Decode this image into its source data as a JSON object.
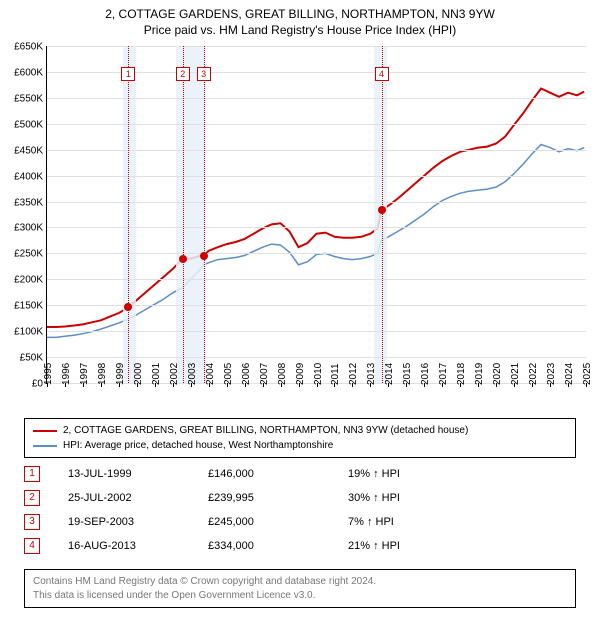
{
  "title": {
    "line1": "2, COTTAGE GARDENS, GREAT BILLING, NORTHAMPTON, NN3 9YW",
    "line2": "Price paid vs. HM Land Registry's House Price Index (HPI)"
  },
  "chart": {
    "type": "line",
    "background_color": "#ffffff",
    "grid_color": "#e0e0e0",
    "shade_color": "#e9f0f8",
    "x": {
      "min": 1995,
      "max": 2025,
      "step": 1
    },
    "y": {
      "min": 0,
      "max": 650000,
      "step": 50000,
      "prefix": "£",
      "suffix": "K",
      "divisor": 1000
    },
    "vline_color": "#cc0000",
    "marker_box_border": "#cc0000",
    "marker_box_text": "#cc0000",
    "marker_top_y": 610000,
    "shaded_ranges": [
      {
        "from": 1999.25,
        "to": 1999.95
      },
      {
        "from": 2002.2,
        "to": 2003.85
      },
      {
        "from": 2013.2,
        "to": 2013.95
      }
    ],
    "sales_markers": [
      {
        "n": "1",
        "x": 1999.53,
        "y": 146000
      },
      {
        "n": "2",
        "x": 2002.56,
        "y": 239995
      },
      {
        "n": "3",
        "x": 2003.72,
        "y": 245000
      },
      {
        "n": "4",
        "x": 2013.62,
        "y": 334000
      }
    ],
    "series": [
      {
        "name": "property",
        "color": "#cc0000",
        "width": 2,
        "points": [
          [
            1995.0,
            108000
          ],
          [
            1995.5,
            108000
          ],
          [
            1996.0,
            109000
          ],
          [
            1996.5,
            111000
          ],
          [
            1997.0,
            113000
          ],
          [
            1997.5,
            117000
          ],
          [
            1998.0,
            121000
          ],
          [
            1998.5,
            128000
          ],
          [
            1999.0,
            135000
          ],
          [
            1999.53,
            146000
          ],
          [
            2000.0,
            160000
          ],
          [
            2000.5,
            175000
          ],
          [
            2001.0,
            190000
          ],
          [
            2001.5,
            205000
          ],
          [
            2002.0,
            220000
          ],
          [
            2002.56,
            239995
          ],
          [
            2003.0,
            240000
          ],
          [
            2003.5,
            245000
          ],
          [
            2003.72,
            245000
          ],
          [
            2004.0,
            255000
          ],
          [
            2004.5,
            262000
          ],
          [
            2005.0,
            268000
          ],
          [
            2005.5,
            272000
          ],
          [
            2006.0,
            278000
          ],
          [
            2006.5,
            288000
          ],
          [
            2007.0,
            298000
          ],
          [
            2007.5,
            306000
          ],
          [
            2008.0,
            308000
          ],
          [
            2008.5,
            292000
          ],
          [
            2009.0,
            262000
          ],
          [
            2009.5,
            270000
          ],
          [
            2010.0,
            288000
          ],
          [
            2010.5,
            290000
          ],
          [
            2011.0,
            282000
          ],
          [
            2011.5,
            280000
          ],
          [
            2012.0,
            280000
          ],
          [
            2012.5,
            282000
          ],
          [
            2013.0,
            288000
          ],
          [
            2013.4,
            298000
          ],
          [
            2013.62,
            334000
          ],
          [
            2014.0,
            342000
          ],
          [
            2014.5,
            355000
          ],
          [
            2015.0,
            370000
          ],
          [
            2015.5,
            385000
          ],
          [
            2016.0,
            400000
          ],
          [
            2016.5,
            415000
          ],
          [
            2017.0,
            428000
          ],
          [
            2017.5,
            438000
          ],
          [
            2018.0,
            446000
          ],
          [
            2018.5,
            450000
          ],
          [
            2019.0,
            454000
          ],
          [
            2019.5,
            456000
          ],
          [
            2020.0,
            462000
          ],
          [
            2020.5,
            475000
          ],
          [
            2021.0,
            498000
          ],
          [
            2021.5,
            520000
          ],
          [
            2022.0,
            545000
          ],
          [
            2022.5,
            568000
          ],
          [
            2023.0,
            560000
          ],
          [
            2023.5,
            552000
          ],
          [
            2024.0,
            560000
          ],
          [
            2024.5,
            555000
          ],
          [
            2024.9,
            562000
          ]
        ]
      },
      {
        "name": "hpi",
        "color": "#5b8fc7",
        "width": 1.5,
        "points": [
          [
            1995.0,
            88000
          ],
          [
            1995.5,
            88000
          ],
          [
            1996.0,
            90000
          ],
          [
            1996.5,
            92000
          ],
          [
            1997.0,
            95000
          ],
          [
            1997.5,
            99000
          ],
          [
            1998.0,
            104000
          ],
          [
            1998.5,
            110000
          ],
          [
            1999.0,
            116000
          ],
          [
            1999.53,
            123000
          ],
          [
            2000.0,
            132000
          ],
          [
            2000.5,
            142000
          ],
          [
            2001.0,
            152000
          ],
          [
            2001.5,
            162000
          ],
          [
            2002.0,
            174000
          ],
          [
            2002.56,
            184000
          ],
          [
            2003.0,
            200000
          ],
          [
            2003.5,
            218000
          ],
          [
            2003.72,
            228000
          ],
          [
            2004.0,
            232000
          ],
          [
            2004.5,
            238000
          ],
          [
            2005.0,
            240000
          ],
          [
            2005.5,
            242000
          ],
          [
            2006.0,
            246000
          ],
          [
            2006.5,
            254000
          ],
          [
            2007.0,
            262000
          ],
          [
            2007.5,
            268000
          ],
          [
            2008.0,
            266000
          ],
          [
            2008.5,
            252000
          ],
          [
            2009.0,
            228000
          ],
          [
            2009.5,
            234000
          ],
          [
            2010.0,
            248000
          ],
          [
            2010.5,
            250000
          ],
          [
            2011.0,
            244000
          ],
          [
            2011.5,
            240000
          ],
          [
            2012.0,
            238000
          ],
          [
            2012.5,
            240000
          ],
          [
            2013.0,
            244000
          ],
          [
            2013.4,
            250000
          ],
          [
            2013.62,
            276000
          ],
          [
            2014.0,
            282000
          ],
          [
            2014.5,
            292000
          ],
          [
            2015.0,
            302000
          ],
          [
            2015.5,
            314000
          ],
          [
            2016.0,
            326000
          ],
          [
            2016.5,
            340000
          ],
          [
            2017.0,
            352000
          ],
          [
            2017.5,
            360000
          ],
          [
            2018.0,
            366000
          ],
          [
            2018.5,
            370000
          ],
          [
            2019.0,
            372000
          ],
          [
            2019.5,
            374000
          ],
          [
            2020.0,
            378000
          ],
          [
            2020.5,
            388000
          ],
          [
            2021.0,
            404000
          ],
          [
            2021.5,
            422000
          ],
          [
            2022.0,
            442000
          ],
          [
            2022.5,
            460000
          ],
          [
            2023.0,
            454000
          ],
          [
            2023.5,
            446000
          ],
          [
            2024.0,
            452000
          ],
          [
            2024.5,
            448000
          ],
          [
            2024.9,
            454000
          ]
        ]
      }
    ]
  },
  "legend": {
    "items": [
      {
        "color": "#cc0000",
        "label": "2, COTTAGE GARDENS, GREAT BILLING, NORTHAMPTON, NN3 9YW (detached house)"
      },
      {
        "color": "#5b8fc7",
        "label": "HPI: Average price, detached house, West Northamptonshire"
      }
    ]
  },
  "sales_table": {
    "rows": [
      {
        "n": "1",
        "date": "13-JUL-1999",
        "price": "£146,000",
        "pct": "19% ↑ HPI"
      },
      {
        "n": "2",
        "date": "25-JUL-2002",
        "price": "£239,995",
        "pct": "30% ↑ HPI"
      },
      {
        "n": "3",
        "date": "19-SEP-2003",
        "price": "£245,000",
        "pct": "7% ↑ HPI"
      },
      {
        "n": "4",
        "date": "16-AUG-2013",
        "price": "£334,000",
        "pct": "21% ↑ HPI"
      }
    ]
  },
  "footer": {
    "line1": "Contains HM Land Registry data © Crown copyright and database right 2024.",
    "line2": "This data is licensed under the Open Government Licence v3.0."
  }
}
